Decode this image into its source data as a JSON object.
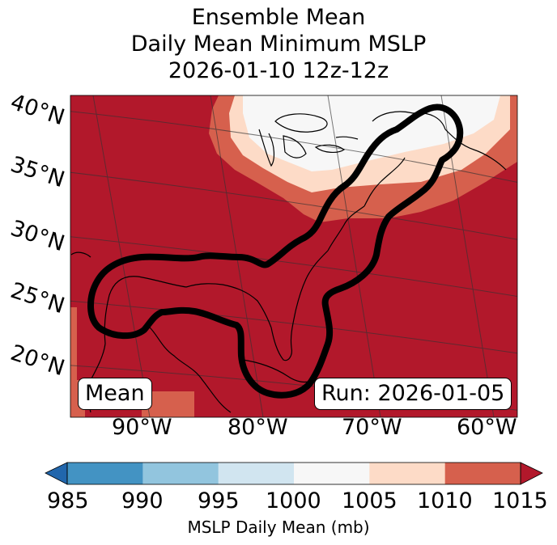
{
  "title": {
    "line1": "Ensemble Mean",
    "line2": "Daily Mean Minimum MSLP",
    "line3": "2026-01-10 12z-12z"
  },
  "map": {
    "latitude_labels": [
      "40°N",
      "35°N",
      "30°N",
      "25°N",
      "20°N"
    ],
    "longitude_labels": [
      "90°W",
      "80°W",
      "70°W",
      "60°W"
    ],
    "mode_label": "Mean",
    "run_label": "Run: 2026-01-05",
    "colors": {
      "background_field": "#b2182b",
      "contour_line": "#000000",
      "coastline": "#000000",
      "gridline": "#333333"
    }
  },
  "colorbar": {
    "title": "MSLP Daily Mean (mb)",
    "ticks": [
      "985",
      "990",
      "995",
      "1000",
      "1005",
      "1010",
      "1015"
    ],
    "bins": [
      {
        "range": "<985",
        "color": "#2166ac"
      },
      {
        "range": "985-990",
        "color": "#4393c3"
      },
      {
        "range": "990-995",
        "color": "#92c5de"
      },
      {
        "range": "995-1000",
        "color": "#d1e5f0"
      },
      {
        "range": "1000-1005",
        "color": "#f7f7f7"
      },
      {
        "range": "1005-1010",
        "color": "#fddbc7"
      },
      {
        "range": "1010-1015",
        "color": "#d6604d"
      },
      {
        "range": ">1015",
        "color": "#b2182b"
      }
    ]
  }
}
